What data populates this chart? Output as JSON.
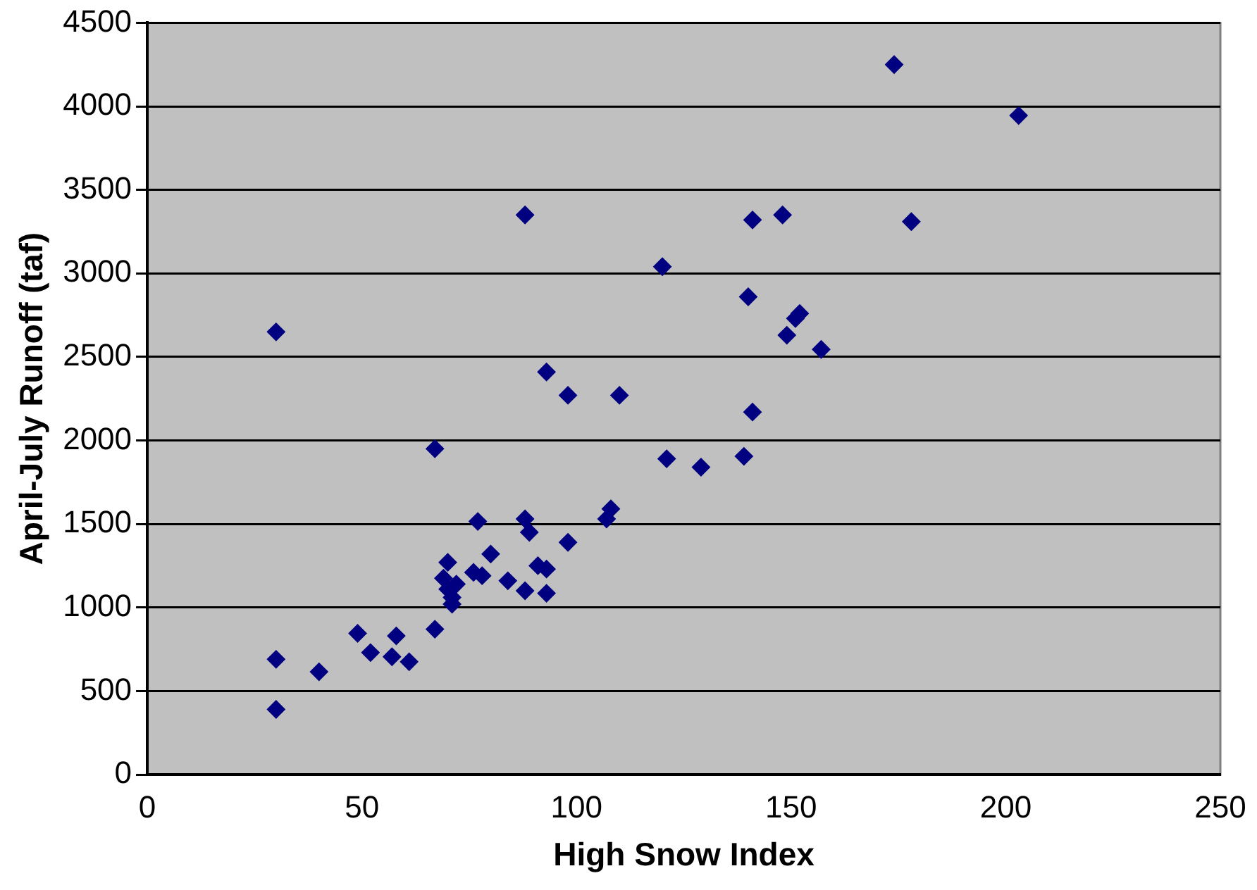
{
  "chart_data": {
    "type": "scatter",
    "xlabel": "High Snow Index",
    "ylabel": "April-July Runoff (taf)",
    "x": [
      30,
      30,
      30,
      40,
      49,
      52,
      57,
      58,
      61,
      67,
      67,
      69,
      70,
      70,
      71,
      71,
      72,
      77,
      76,
      78,
      80,
      84,
      88,
      88,
      89,
      88,
      91,
      93,
      93,
      93,
      98,
      98,
      107,
      108,
      110,
      120,
      121,
      129,
      139,
      141,
      140,
      141,
      148,
      149,
      151,
      152,
      157,
      174,
      178,
      203
    ],
    "series": [
      {
        "color": "#000080",
        "values": [
          690,
          390,
          2650,
          615,
          845,
          730,
          705,
          830,
          675,
          870,
          1950,
          1175,
          1270,
          1110,
          1020,
          1060,
          1140,
          1515,
          1210,
          1190,
          1320,
          1160,
          1100,
          1530,
          1450,
          3350,
          1250,
          1230,
          1085,
          2410,
          1390,
          2270,
          1530,
          1590,
          2270,
          3040,
          1890,
          1840,
          1905,
          3320,
          2860,
          2170,
          3350,
          2630,
          2730,
          2760,
          2545,
          4250,
          3310,
          3945
        ]
      }
    ],
    "xlim": [
      0,
      250
    ],
    "xticks": [
      0,
      50,
      100,
      150,
      200,
      250
    ],
    "ylim": [
      0,
      4500
    ],
    "yticks": [
      0,
      500,
      1000,
      1500,
      2000,
      2500,
      3000,
      3500,
      4000,
      4500
    ],
    "grid": "y",
    "legend": false,
    "marker": "diamond"
  }
}
